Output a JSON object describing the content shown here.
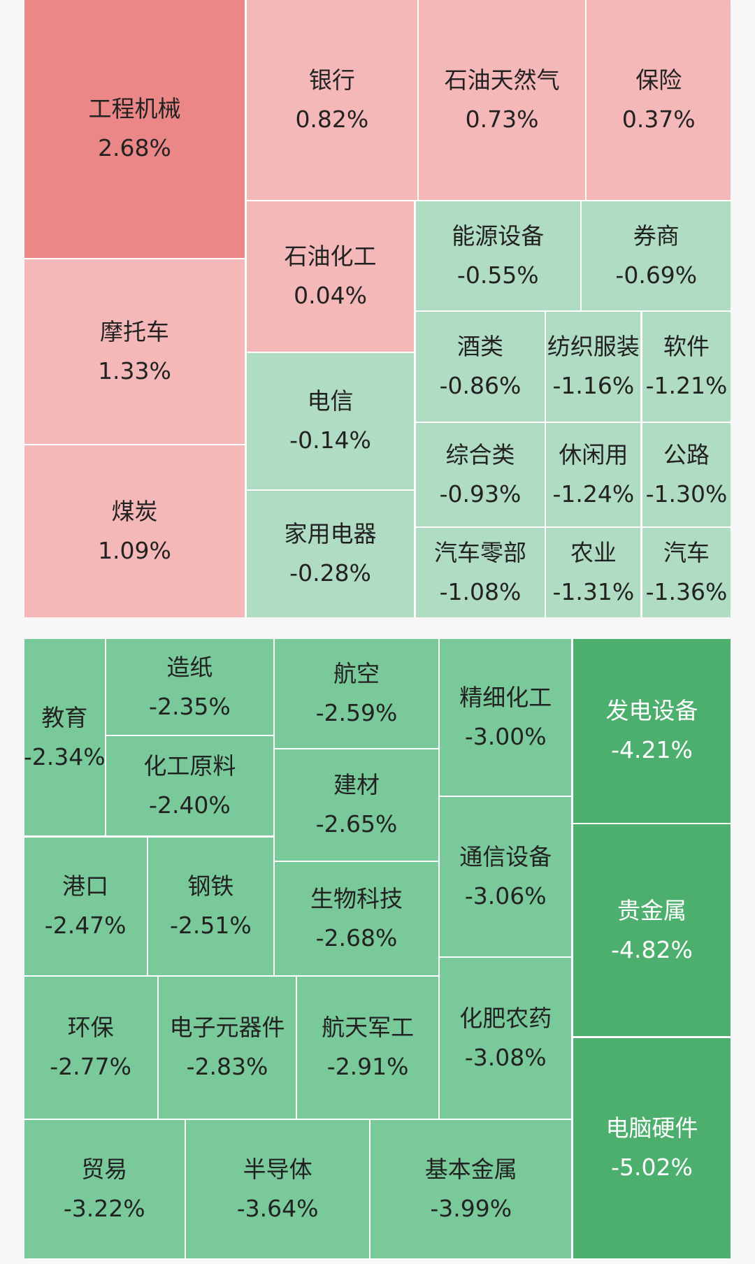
{
  "tiles": [
    {
      "name": "工程机械",
      "change": "2.68%"
    },
    {
      "name": "摩托车",
      "change": "1.33%"
    },
    {
      "name": "煤炭",
      "change": "1.09%"
    },
    {
      "name": "银行",
      "change": "0.82%"
    },
    {
      "name": "石油天然气",
      "change": "0.73%"
    },
    {
      "name": "保险",
      "change": "0.37%"
    },
    {
      "name": "石油化工",
      "change": "0.04%"
    },
    {
      "name": "电信",
      "change": "-0.14%"
    },
    {
      "name": "家用电器",
      "change": "-0.28%"
    },
    {
      "name": "能源设备",
      "change": "-0.55%"
    },
    {
      "name": "券商",
      "change": "-0.69%"
    },
    {
      "name": "酒类",
      "change": "-0.86%"
    },
    {
      "name": "纺织服装",
      "change": "-1.16%"
    },
    {
      "name": "软件",
      "change": "-1.21%"
    },
    {
      "name": "综合类",
      "change": "-0.93%"
    },
    {
      "name": "休闲用",
      "change": "-1.24%"
    },
    {
      "name": "公路",
      "change": "-1.30%"
    },
    {
      "name": "汽车零部",
      "change": "-1.08%"
    },
    {
      "name": "农业",
      "change": "-1.31%"
    },
    {
      "name": "汽车",
      "change": "-1.36%"
    },
    {
      "name": "教育",
      "change": "-2.34%"
    },
    {
      "name": "造纸",
      "change": "-2.35%"
    },
    {
      "name": "化工原料",
      "change": "-2.40%"
    },
    {
      "name": "港口",
      "change": "-2.47%"
    },
    {
      "name": "钢铁",
      "change": "-2.51%"
    },
    {
      "name": "航空",
      "change": "-2.59%"
    },
    {
      "name": "建材",
      "change": "-2.65%"
    },
    {
      "name": "生物科技",
      "change": "-2.68%"
    },
    {
      "name": "精细化工",
      "change": "-3.00%"
    },
    {
      "name": "通信设备",
      "change": "-3.06%"
    },
    {
      "name": "化肥农药",
      "change": "-3.08%"
    },
    {
      "name": "环保",
      "change": "-2.77%"
    },
    {
      "name": "电子元器件",
      "change": "-2.83%"
    },
    {
      "name": "航天军工",
      "change": "-2.91%"
    },
    {
      "name": "贸易",
      "change": "-3.22%"
    },
    {
      "name": "半导体",
      "change": "-3.64%"
    },
    {
      "name": "基本金属",
      "change": "-3.99%"
    },
    {
      "name": "发电设备",
      "change": "-4.21%"
    },
    {
      "name": "贵金属",
      "change": "-4.82%"
    },
    {
      "name": "电脑硬件",
      "change": "-5.02%"
    }
  ]
}
